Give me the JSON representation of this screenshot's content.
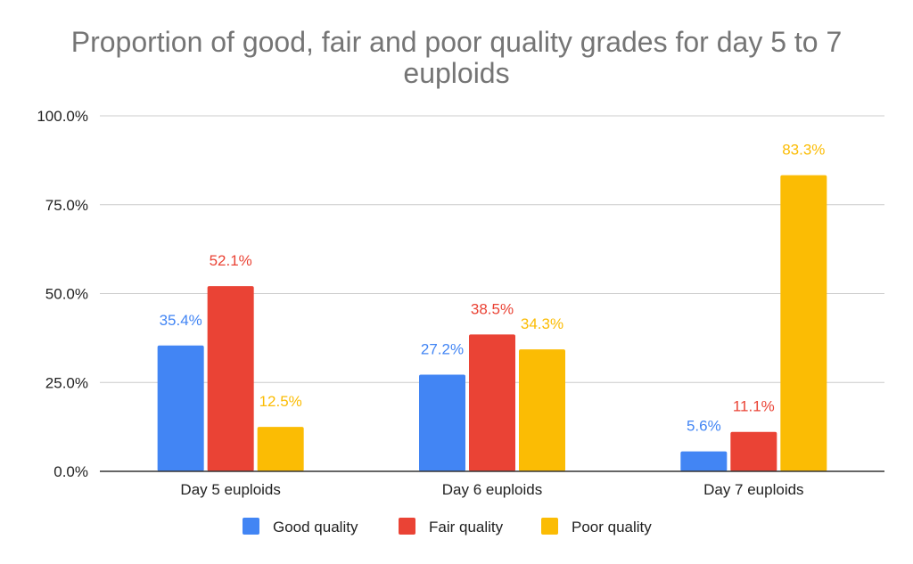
{
  "chart_data": {
    "type": "bar",
    "title": "Proportion of good, fair and poor quality grades for day 5 to 7 euploids",
    "title_lines": [
      "Proportion of good, fair and poor quality grades for day 5 to 7",
      "euploids"
    ],
    "xlabel": "",
    "ylabel": "",
    "categories": [
      "Day 5 euploids",
      "Day 6 euploids",
      "Day 7 euploids"
    ],
    "series": [
      {
        "name": "Good quality",
        "color": "#4285F4",
        "values": [
          35.4,
          27.2,
          5.6
        ],
        "labels": [
          "35.4%",
          "27.2%",
          "5.6%"
        ]
      },
      {
        "name": "Fair quality",
        "color": "#EA4335",
        "values": [
          52.1,
          38.5,
          11.1
        ],
        "labels": [
          "52.1%",
          "38.5%",
          "11.1%"
        ]
      },
      {
        "name": "Poor quality",
        "color": "#FBBC04",
        "values": [
          12.5,
          34.3,
          83.3
        ],
        "labels": [
          "12.5%",
          "34.3%",
          "83.3%"
        ]
      }
    ],
    "ylim": [
      0,
      100
    ],
    "yticks": [
      0,
      25,
      50,
      75,
      100
    ],
    "ytick_labels": [
      "0.0%",
      "25.0%",
      "50.0%",
      "75.0%",
      "100.0%"
    ],
    "grid": true,
    "legend_position": "bottom"
  }
}
